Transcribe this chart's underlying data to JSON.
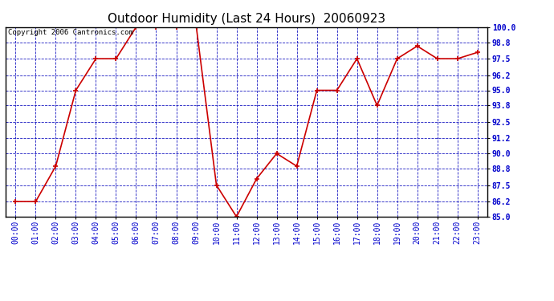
{
  "title": "Outdoor Humidity (Last 24 Hours)  20060923",
  "copyright_text": "Copyright 2006 Cantronics.com",
  "x_labels": [
    "00:00",
    "01:00",
    "02:00",
    "03:00",
    "04:00",
    "05:00",
    "06:00",
    "07:00",
    "08:00",
    "09:00",
    "10:00",
    "11:00",
    "12:00",
    "13:00",
    "14:00",
    "15:00",
    "16:00",
    "17:00",
    "18:00",
    "19:00",
    "20:00",
    "21:00",
    "22:00",
    "23:00"
  ],
  "y_values": [
    86.2,
    86.2,
    89.0,
    95.0,
    97.5,
    97.5,
    100.0,
    100.0,
    100.0,
    100.0,
    87.5,
    85.0,
    88.0,
    90.0,
    89.0,
    95.0,
    95.0,
    97.5,
    93.8,
    97.5,
    98.5,
    97.5,
    97.5,
    98.0
  ],
  "ylim_min": 85.0,
  "ylim_max": 100.0,
  "ytick_values": [
    85.0,
    86.2,
    87.5,
    88.8,
    90.0,
    91.2,
    92.5,
    93.8,
    95.0,
    96.2,
    97.5,
    98.8,
    100.0
  ],
  "line_color": "#cc0000",
  "marker_color": "#cc0000",
  "bg_color": "#ffffff",
  "plot_bg_color": "#ffffff",
  "grid_color": "#0000bb",
  "title_color": "#000000",
  "title_fontsize": 11,
  "axis_label_color": "#0000cc",
  "axis_tick_fontsize": 7,
  "copyright_color": "#000000",
  "copyright_fontsize": 6.5,
  "line_width": 1.2,
  "marker_size": 4,
  "marker_style": "+"
}
